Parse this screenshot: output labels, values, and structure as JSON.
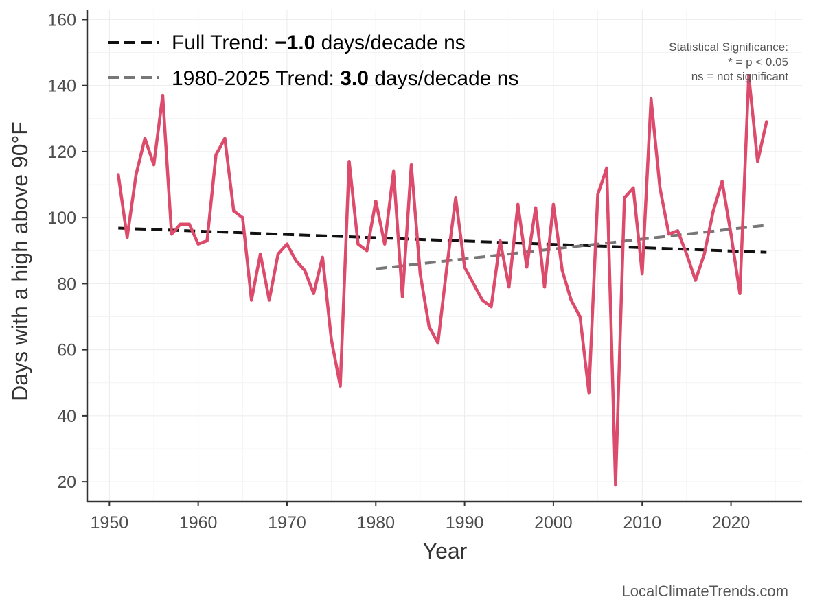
{
  "colors": {
    "series": "#dc4b6b",
    "full_trend": "#111111",
    "recent_trend": "#777777",
    "axis": "#333333",
    "tick_label": "#4d4d4d",
    "grid": "#ebebeb",
    "note": "#555555"
  },
  "chart_data": {
    "type": "line",
    "title": "",
    "xlabel": "Year",
    "ylabel": "Days with a high above 90°F",
    "xlim": [
      1947.5,
      2028
    ],
    "ylim": [
      14,
      163
    ],
    "xticks": [
      1950,
      1960,
      1970,
      1980,
      1990,
      2000,
      2010,
      2020
    ],
    "yticks": [
      20,
      40,
      60,
      80,
      100,
      120,
      140,
      160
    ],
    "grid": true,
    "legend_position": "top-left",
    "series": [
      {
        "name": "Days above 90°F",
        "x": [
          1951,
          1952,
          1953,
          1954,
          1955,
          1956,
          1957,
          1958,
          1959,
          1960,
          1961,
          1962,
          1963,
          1964,
          1965,
          1966,
          1967,
          1968,
          1969,
          1970,
          1971,
          1972,
          1973,
          1974,
          1975,
          1976,
          1977,
          1978,
          1979,
          1980,
          1981,
          1982,
          1983,
          1984,
          1985,
          1986,
          1987,
          1988,
          1989,
          1990,
          1991,
          1992,
          1993,
          1994,
          1995,
          1996,
          1997,
          1998,
          1999,
          2000,
          2001,
          2002,
          2003,
          2004,
          2005,
          2006,
          2007,
          2008,
          2009,
          2010,
          2011,
          2012,
          2013,
          2014,
          2015,
          2016,
          2017,
          2018,
          2019,
          2020,
          2021,
          2022,
          2023,
          2024
        ],
        "values": [
          113,
          94,
          113,
          124,
          116,
          137,
          95,
          98,
          98,
          92,
          93,
          119,
          124,
          102,
          100,
          75,
          89,
          75,
          89,
          92,
          87,
          84,
          77,
          88,
          63,
          49,
          117,
          92,
          90,
          105,
          92,
          114,
          76,
          116,
          83,
          67,
          62,
          85,
          106,
          85,
          80,
          75,
          73,
          93,
          79,
          104,
          85,
          103,
          79,
          104,
          84,
          75,
          70,
          47,
          107,
          115,
          19,
          106,
          109,
          83,
          136,
          109,
          95,
          96,
          89,
          81,
          89,
          102,
          111,
          95,
          77,
          143,
          117,
          129
        ]
      }
    ],
    "trends": [
      {
        "name": "Full Trend",
        "x": [
          1951,
          2024
        ],
        "values": [
          96.8,
          89.5
        ]
      },
      {
        "name": "1980-2025 Trend",
        "x": [
          1980,
          2024
        ],
        "values": [
          84.5,
          97.7
        ]
      }
    ]
  },
  "legend": {
    "full": {
      "prefix": "Full Trend: ",
      "value": "−1.0",
      "suffix": " days/decade ns"
    },
    "recent": {
      "prefix": "1980-2025 Trend: ",
      "value": "3.0",
      "suffix": " days/decade ns"
    }
  },
  "significance_note": {
    "line1": "Statistical Significance:",
    "line2": "* = p < 0.05",
    "line3": "ns = not significant"
  },
  "credit": "LocalClimateTrends.com"
}
